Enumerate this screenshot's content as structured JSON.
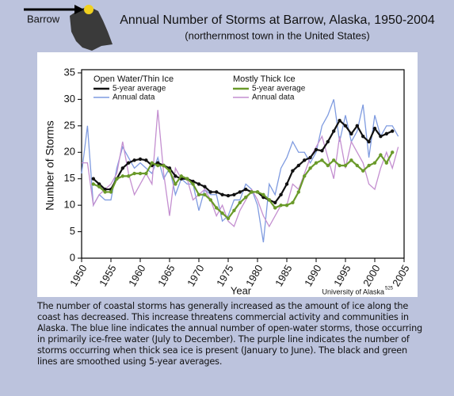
{
  "chart_data": {
    "type": "line",
    "title": "Annual Number of Storms at Barrow, Alaska, 1950-2004",
    "subtitle": "(northernmost town in the United States)",
    "location_label": "Barrow",
    "x_label": "Year",
    "y_label": "Number of Storms",
    "source": "University of Alaska",
    "source_number": "525",
    "caption": "The number of coastal storms has generally increased as the amount of ice along the coast has decreased. This increase threatens commercial activity and communities in Alaska. The blue line indicates the annual number of open-water storms, those occurring in primarily ice-free water (July to December). The purple line indicates the number of storms occurring when thick sea ice is present (January to June). The black and green lines are smoothed using 5-year averages.",
    "x": [
      1950,
      1951,
      1952,
      1953,
      1954,
      1955,
      1956,
      1957,
      1958,
      1959,
      1960,
      1961,
      1962,
      1963,
      1964,
      1965,
      1966,
      1967,
      1968,
      1969,
      1970,
      1971,
      1972,
      1973,
      1974,
      1975,
      1976,
      1977,
      1978,
      1979,
      1980,
      1981,
      1982,
      1983,
      1984,
      1985,
      1986,
      1987,
      1988,
      1989,
      1990,
      1991,
      1992,
      1993,
      1994,
      1995,
      1996,
      1997,
      1998,
      1999,
      2000,
      2001,
      2002,
      2003,
      2004
    ],
    "xlim": [
      1950,
      2005
    ],
    "xticks": [
      1950,
      1955,
      1960,
      1965,
      1970,
      1975,
      1980,
      1985,
      1990,
      1995,
      2000,
      2005
    ],
    "ylim": [
      0,
      35
    ],
    "yticks": [
      0,
      5,
      10,
      15,
      20,
      25,
      30,
      35
    ],
    "series": [
      {
        "group": "Open Water/Thin Ice",
        "name": "5-year average",
        "color": "#111111",
        "markers": true,
        "values": [
          null,
          null,
          15,
          14,
          13,
          13,
          15,
          17,
          18,
          18.5,
          18.7,
          18.5,
          17.5,
          18,
          17.5,
          17,
          15.5,
          15,
          15,
          14.5,
          14,
          13.5,
          12.5,
          12.5,
          12,
          11.8,
          12,
          12.5,
          13,
          12.5,
          12.5,
          11.5,
          11,
          10.5,
          12,
          14,
          16.5,
          17.5,
          18.5,
          19,
          20.5,
          20.3,
          22,
          24,
          26,
          25,
          23.5,
          25,
          23,
          22,
          24.5,
          23,
          23.5,
          24,
          null
        ]
      },
      {
        "group": "Open Water/Thin Ice",
        "name": "Annual data",
        "color": "#7f9be0",
        "markers": false,
        "values": [
          16,
          25,
          10,
          12,
          11,
          11,
          17,
          21,
          19,
          17,
          18,
          17,
          16,
          19,
          15,
          17,
          12,
          15,
          14,
          14,
          9,
          13,
          12,
          12,
          7,
          8,
          11,
          11,
          14,
          13,
          10,
          3,
          14,
          12,
          17,
          19,
          22,
          20,
          20,
          18,
          20,
          25,
          27,
          30,
          22,
          27,
          22,
          24,
          29,
          19,
          27,
          23,
          25,
          25,
          23
        ]
      },
      {
        "group": "Mostly Thick Ice",
        "name": "5-year average",
        "color": "#6a9a2a",
        "markers": true,
        "values": [
          null,
          null,
          14,
          13.5,
          12.5,
          12.5,
          15,
          15.5,
          15.5,
          16,
          16,
          16,
          18,
          17.5,
          17.5,
          16.5,
          14,
          15.5,
          15,
          14,
          12,
          12,
          11,
          9.5,
          8.5,
          7.5,
          9,
          10.5,
          11.5,
          12.5,
          12.5,
          12,
          11,
          9.5,
          10,
          10,
          10.5,
          12.5,
          15.5,
          17,
          18,
          18.5,
          17.5,
          18.5,
          17.5,
          17.5,
          18.5,
          17.5,
          16.5,
          17.5,
          18,
          19.5,
          18,
          20,
          null
        ]
      },
      {
        "group": "Mostly Thick Ice",
        "name": "Annual data",
        "color": "#c48fd0",
        "markers": false,
        "values": [
          18,
          18,
          10,
          12,
          13,
          14,
          16,
          22,
          16,
          12,
          14,
          16,
          14,
          28,
          16,
          8,
          17,
          15,
          15,
          11,
          12,
          13,
          11,
          8,
          10,
          7,
          6,
          9,
          11,
          13,
          11,
          8,
          6,
          8,
          10,
          10,
          14,
          13,
          16,
          19,
          21,
          23,
          19,
          15,
          23,
          17,
          22,
          20,
          18,
          14,
          13,
          17,
          20,
          17,
          21
        ]
      }
    ]
  }
}
